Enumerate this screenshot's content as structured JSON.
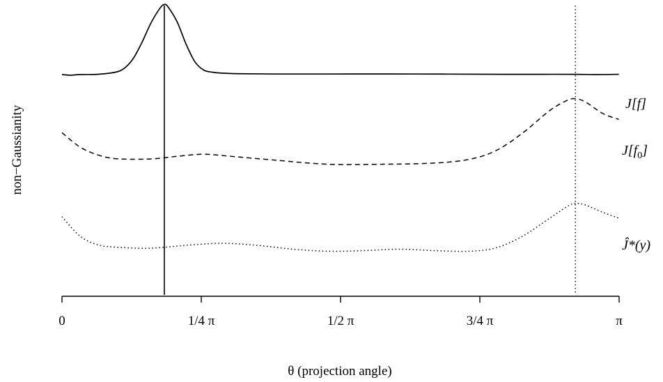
{
  "chart_data": {
    "type": "line",
    "xlabel": "θ  (projection angle)",
    "ylabel": "non−Gaussianity",
    "xlim": [
      0,
      3.14159
    ],
    "ylim": [
      0,
      1
    ],
    "x_ticks": [
      {
        "value": 0,
        "label": "0"
      },
      {
        "value": 0.7854,
        "label": "1/4 π"
      },
      {
        "value": 1.5708,
        "label": "1/2 π"
      },
      {
        "value": 2.3562,
        "label": "3/4 π"
      },
      {
        "value": 3.14159,
        "label": "π"
      }
    ],
    "vertical_lines": [
      {
        "x": 0.577,
        "style": "solid"
      },
      {
        "x": 2.895,
        "style": "dotted"
      }
    ],
    "series": [
      {
        "name": "J[f]",
        "style": "solid",
        "x": [
          0,
          0.05,
          0.1,
          0.2,
          0.3,
          0.35,
          0.4,
          0.45,
          0.5,
          0.55,
          0.577,
          0.6,
          0.65,
          0.7,
          0.75,
          0.8,
          0.85,
          0.9,
          1.0,
          1.2,
          1.5,
          2.0,
          2.5,
          2.7,
          2.9,
          3.0,
          3.14
        ],
        "y": [
          0.747,
          0.745,
          0.747,
          0.748,
          0.755,
          0.768,
          0.8,
          0.855,
          0.92,
          0.97,
          0.985,
          0.975,
          0.925,
          0.85,
          0.79,
          0.762,
          0.755,
          0.752,
          0.75,
          0.749,
          0.749,
          0.749,
          0.748,
          0.748,
          0.748,
          0.747,
          0.748
        ]
      },
      {
        "name": "J[f₀]",
        "style": "dashed",
        "x": [
          0,
          0.1,
          0.2,
          0.3,
          0.45,
          0.55,
          0.65,
          0.8,
          0.95,
          1.2,
          1.5,
          1.8,
          2.1,
          2.3,
          2.45,
          2.6,
          2.75,
          2.85,
          2.895,
          2.95,
          3.05,
          3.14
        ],
        "y": [
          0.55,
          0.502,
          0.475,
          0.462,
          0.46,
          0.463,
          0.47,
          0.477,
          0.47,
          0.457,
          0.443,
          0.443,
          0.447,
          0.46,
          0.49,
          0.55,
          0.625,
          0.66,
          0.665,
          0.655,
          0.615,
          0.595
        ]
      },
      {
        "name": "Ĵ*(y)",
        "style": "dotted",
        "x": [
          0,
          0.1,
          0.2,
          0.3,
          0.45,
          0.55,
          0.7,
          0.9,
          1.1,
          1.3,
          1.5,
          1.7,
          1.9,
          2.1,
          2.3,
          2.45,
          2.6,
          2.75,
          2.85,
          2.895,
          2.95,
          3.05,
          3.14
        ],
        "y": [
          0.265,
          0.2,
          0.17,
          0.162,
          0.158,
          0.16,
          0.168,
          0.175,
          0.168,
          0.155,
          0.148,
          0.15,
          0.155,
          0.15,
          0.148,
          0.16,
          0.2,
          0.26,
          0.3,
          0.31,
          0.305,
          0.28,
          0.26
        ]
      }
    ],
    "series_labels": [
      "J[f]",
      "J[f",
      "0",
      "]",
      "Ĵ*(y)"
    ]
  }
}
